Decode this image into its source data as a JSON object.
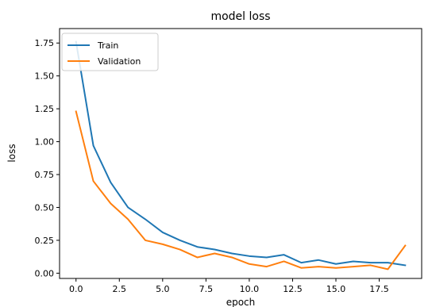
{
  "chart_data": {
    "type": "line",
    "title": "model loss",
    "xlabel": "epoch",
    "ylabel": "loss",
    "xlim": [
      -0.95,
      19.95
    ],
    "ylim": [
      -0.04,
      1.86
    ],
    "xticks": [
      0.0,
      2.5,
      5.0,
      7.5,
      10.0,
      12.5,
      15.0,
      17.5
    ],
    "xtick_labels": [
      "0.0",
      "2.5",
      "5.0",
      "7.5",
      "10.0",
      "12.5",
      "15.0",
      "17.5"
    ],
    "yticks": [
      0.0,
      0.25,
      0.5,
      0.75,
      1.0,
      1.25,
      1.5,
      1.75
    ],
    "ytick_labels": [
      "0.00",
      "0.25",
      "0.50",
      "0.75",
      "1.00",
      "1.25",
      "1.50",
      "1.75"
    ],
    "grid": false,
    "legend_position": "top-left",
    "x": [
      0,
      1,
      2,
      3,
      4,
      5,
      6,
      7,
      8,
      9,
      10,
      11,
      12,
      13,
      14,
      15,
      16,
      17,
      18,
      19
    ],
    "series": [
      {
        "name": "Train",
        "color": "#1f77b4",
        "values": [
          1.76,
          0.97,
          0.69,
          0.5,
          0.41,
          0.31,
          0.25,
          0.2,
          0.18,
          0.15,
          0.13,
          0.12,
          0.14,
          0.08,
          0.1,
          0.07,
          0.09,
          0.08,
          0.08,
          0.06
        ]
      },
      {
        "name": "Validation",
        "color": "#ff7f0e",
        "values": [
          1.23,
          0.7,
          0.53,
          0.41,
          0.25,
          0.22,
          0.18,
          0.12,
          0.15,
          0.12,
          0.07,
          0.05,
          0.09,
          0.04,
          0.05,
          0.04,
          0.05,
          0.06,
          0.03,
          0.21
        ]
      }
    ]
  }
}
